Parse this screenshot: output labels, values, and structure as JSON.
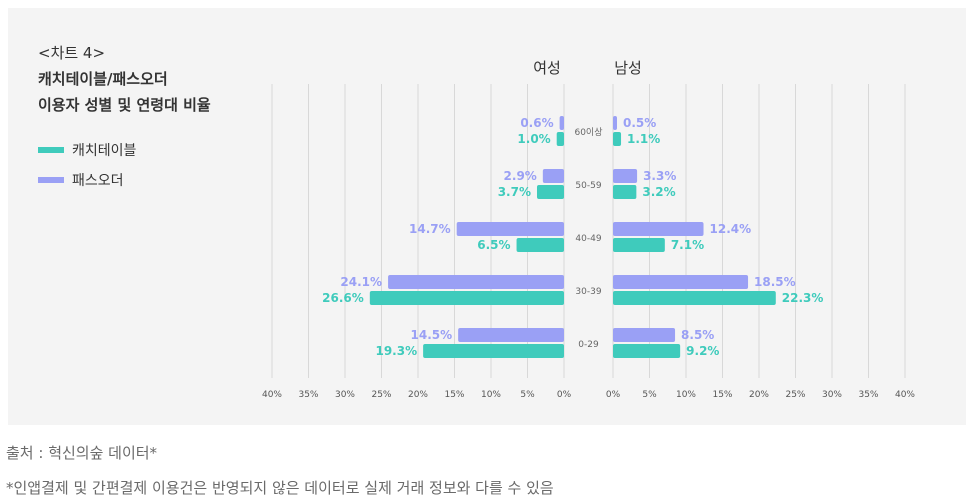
{
  "title": {
    "line1": "<차트 4>",
    "line2": "캐치테이블/패스오더",
    "line3": "이용자 성별 및 연령대 비율"
  },
  "legend": {
    "catchtable": "캐치테이블",
    "passorder": "패스오더"
  },
  "colors": {
    "catchtable": "#3fcbbc",
    "passorder": "#9aa0f5",
    "grid": "#d8d8d8",
    "tick": "#555555"
  },
  "chart_data": {
    "type": "bar",
    "orientation": "horizontal-butterfly",
    "left_header": "여성",
    "right_header": "남성",
    "categories": [
      "60이상",
      "50-59",
      "40-49",
      "30-39",
      "0-29"
    ],
    "female": {
      "passorder": [
        0.6,
        2.9,
        14.7,
        24.1,
        14.5
      ],
      "catchtable": [
        1.0,
        3.7,
        6.5,
        26.6,
        19.3
      ]
    },
    "male": {
      "passorder": [
        0.5,
        3.3,
        12.4,
        18.5,
        8.5
      ],
      "catchtable": [
        1.1,
        3.2,
        7.1,
        22.3,
        9.2
      ]
    },
    "axis_range": [
      0,
      40
    ],
    "left_ticks": [
      "40%",
      "35%",
      "30%",
      "25%",
      "20%",
      "15%",
      "10%",
      "5%",
      "0%"
    ],
    "right_ticks": [
      "0%",
      "5%",
      "10%",
      "15%",
      "20%",
      "25%",
      "30%",
      "35%",
      "40%"
    ],
    "grid": true
  },
  "footer": {
    "source": "출처 : 혁신의숲 데이터*",
    "disclaimer": "*인앱결제 및 간편결제 이용건은 반영되지 않은 데이터로 실제 거래 정보와 다를 수 있음"
  }
}
